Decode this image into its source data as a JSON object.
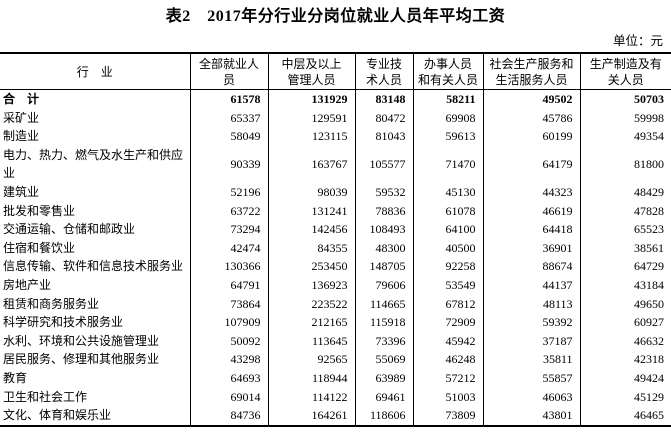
{
  "page": {
    "title": "表2　2017年分行业分岗位就业人员年平均工资",
    "unit_label": "单位：元"
  },
  "table": {
    "columns": [
      "行　业",
      "全部就业人\n员",
      "中层及以上\n管理人员",
      "专业技\n术人员",
      "办事人员\n和有关人员",
      "社会生产服务和\n生活服务人员",
      "生产制造及有\n关人员"
    ],
    "rows": [
      {
        "industry": "合　计",
        "bold": true,
        "values": [
          61578,
          131929,
          83148,
          58211,
          49502,
          50703
        ]
      },
      {
        "industry": "采矿业",
        "bold": false,
        "values": [
          65337,
          129591,
          80472,
          69908,
          45786,
          59998
        ]
      },
      {
        "industry": "制造业",
        "bold": false,
        "values": [
          58049,
          123115,
          81043,
          59613,
          60199,
          49354
        ]
      },
      {
        "industry": "电力、热力、燃气及水生产和供应\n业",
        "bold": false,
        "values": [
          90339,
          163767,
          105577,
          71470,
          64179,
          81800
        ]
      },
      {
        "industry": "建筑业",
        "bold": false,
        "values": [
          52196,
          98039,
          59532,
          45130,
          44323,
          48429
        ]
      },
      {
        "industry": "批发和零售业",
        "bold": false,
        "values": [
          63722,
          131241,
          78836,
          61078,
          46619,
          47828
        ]
      },
      {
        "industry": "交通运输、仓储和邮政业",
        "bold": false,
        "values": [
          73294,
          142456,
          108493,
          64100,
          64418,
          65523
        ]
      },
      {
        "industry": "住宿和餐饮业",
        "bold": false,
        "values": [
          42474,
          84355,
          48300,
          40500,
          36901,
          38561
        ]
      },
      {
        "industry": "信息传输、软件和信息技术服务业",
        "bold": false,
        "values": [
          130366,
          253450,
          148705,
          92258,
          88674,
          64729
        ]
      },
      {
        "industry": "房地产业",
        "bold": false,
        "values": [
          64791,
          136923,
          79606,
          53549,
          44137,
          43184
        ]
      },
      {
        "industry": "租赁和商务服务业",
        "bold": false,
        "values": [
          73864,
          223522,
          114665,
          67812,
          48113,
          49650
        ]
      },
      {
        "industry": "科学研究和技术服务业",
        "bold": false,
        "values": [
          107909,
          212165,
          115918,
          72909,
          59392,
          60927
        ]
      },
      {
        "industry": "水利、环境和公共设施管理业",
        "bold": false,
        "values": [
          50092,
          113645,
          73396,
          45942,
          37187,
          46632
        ]
      },
      {
        "industry": "居民服务、修理和其他服务业",
        "bold": false,
        "values": [
          43298,
          92565,
          55069,
          46248,
          35811,
          42318
        ]
      },
      {
        "industry": "教育",
        "bold": false,
        "values": [
          64693,
          118944,
          63989,
          57212,
          55857,
          49424
        ]
      },
      {
        "industry": "卫生和社会工作",
        "bold": false,
        "values": [
          69014,
          114122,
          69461,
          51003,
          46063,
          45129
        ]
      },
      {
        "industry": "文化、体育和娱乐业",
        "bold": false,
        "values": [
          84736,
          164261,
          118606,
          73809,
          43801,
          46465
        ]
      }
    ]
  }
}
